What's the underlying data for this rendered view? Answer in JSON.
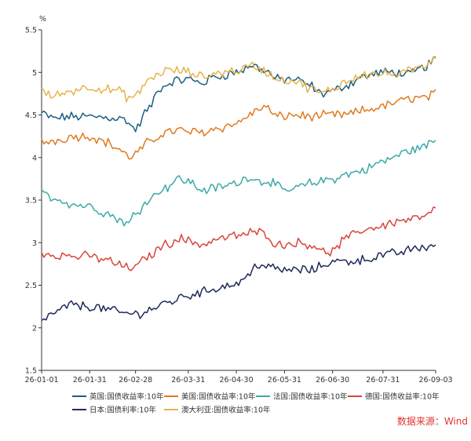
{
  "chart_data": {
    "type": "line",
    "unit_label": "%",
    "source_note": "数据来源：Wind",
    "x_tick_labels": [
      "26-01-01",
      "26-01-31",
      "26-02-28",
      "26-03-31",
      "26-04-30",
      "26-05-31",
      "26-06-30",
      "26-07-31",
      "26-09-03"
    ],
    "x_tick_index": [
      0,
      21,
      41,
      64,
      85,
      106,
      127,
      149,
      172
    ],
    "y_ticks": [
      "1.5",
      "2",
      "2.5",
      "3",
      "3.5",
      "4",
      "4.5",
      "5",
      "5.5"
    ],
    "ylim": [
      1.5,
      5.5
    ],
    "n_points": 173,
    "grid": false,
    "legend_position": "bottom",
    "series": [
      {
        "name": "英国:国债收益率:10年",
        "color": "#1b5e83",
        "anchors": [
          [
            0,
            4.52
          ],
          [
            5,
            4.46
          ],
          [
            12,
            4.48
          ],
          [
            21,
            4.48
          ],
          [
            30,
            4.47
          ],
          [
            36,
            4.45
          ],
          [
            41,
            4.33
          ],
          [
            46,
            4.55
          ],
          [
            52,
            4.82
          ],
          [
            58,
            4.9
          ],
          [
            64,
            4.92
          ],
          [
            70,
            4.88
          ],
          [
            76,
            4.95
          ],
          [
            85,
            5.0
          ],
          [
            92,
            5.08
          ],
          [
            97,
            5.03
          ],
          [
            103,
            4.92
          ],
          [
            110,
            4.92
          ],
          [
            117,
            4.85
          ],
          [
            122,
            4.75
          ],
          [
            127,
            4.78
          ],
          [
            133,
            4.85
          ],
          [
            140,
            4.95
          ],
          [
            149,
            5.0
          ],
          [
            155,
            5.0
          ],
          [
            160,
            4.97
          ],
          [
            166,
            5.05
          ],
          [
            172,
            5.15
          ]
        ]
      },
      {
        "name": "美国:国债收益率:10年",
        "color": "#e07a1f",
        "anchors": [
          [
            0,
            4.18
          ],
          [
            6,
            4.2
          ],
          [
            14,
            4.25
          ],
          [
            21,
            4.25
          ],
          [
            28,
            4.18
          ],
          [
            34,
            4.1
          ],
          [
            38,
            4.0
          ],
          [
            41,
            4.05
          ],
          [
            47,
            4.18
          ],
          [
            54,
            4.3
          ],
          [
            60,
            4.32
          ],
          [
            64,
            4.3
          ],
          [
            70,
            4.3
          ],
          [
            78,
            4.35
          ],
          [
            85,
            4.4
          ],
          [
            92,
            4.52
          ],
          [
            97,
            4.6
          ],
          [
            103,
            4.48
          ],
          [
            110,
            4.5
          ],
          [
            118,
            4.48
          ],
          [
            127,
            4.5
          ],
          [
            133,
            4.5
          ],
          [
            140,
            4.55
          ],
          [
            149,
            4.6
          ],
          [
            155,
            4.65
          ],
          [
            162,
            4.7
          ],
          [
            167,
            4.7
          ],
          [
            172,
            4.75
          ]
        ]
      },
      {
        "name": "法国:国债收益率:10年",
        "color": "#3fa8a8",
        "anchors": [
          [
            0,
            3.58
          ],
          [
            6,
            3.52
          ],
          [
            14,
            3.45
          ],
          [
            21,
            3.43
          ],
          [
            28,
            3.35
          ],
          [
            34,
            3.27
          ],
          [
            38,
            3.22
          ],
          [
            41,
            3.35
          ],
          [
            47,
            3.52
          ],
          [
            54,
            3.65
          ],
          [
            60,
            3.75
          ],
          [
            64,
            3.72
          ],
          [
            70,
            3.62
          ],
          [
            78,
            3.65
          ],
          [
            85,
            3.7
          ],
          [
            91,
            3.78
          ],
          [
            95,
            3.72
          ],
          [
            100,
            3.72
          ],
          [
            106,
            3.6
          ],
          [
            112,
            3.65
          ],
          [
            118,
            3.7
          ],
          [
            127,
            3.75
          ],
          [
            133,
            3.8
          ],
          [
            140,
            3.85
          ],
          [
            149,
            3.95
          ],
          [
            155,
            4.02
          ],
          [
            160,
            4.08
          ],
          [
            166,
            4.12
          ],
          [
            172,
            4.2
          ]
        ]
      },
      {
        "name": "德国:国债收益率:10年",
        "color": "#d9443c",
        "anchors": [
          [
            0,
            2.88
          ],
          [
            6,
            2.86
          ],
          [
            14,
            2.84
          ],
          [
            21,
            2.84
          ],
          [
            28,
            2.8
          ],
          [
            34,
            2.74
          ],
          [
            38,
            2.7
          ],
          [
            41,
            2.72
          ],
          [
            47,
            2.85
          ],
          [
            54,
            2.98
          ],
          [
            60,
            3.05
          ],
          [
            64,
            3.02
          ],
          [
            70,
            2.98
          ],
          [
            78,
            3.05
          ],
          [
            85,
            3.08
          ],
          [
            92,
            3.12
          ],
          [
            97,
            3.12
          ],
          [
            103,
            2.97
          ],
          [
            110,
            3.0
          ],
          [
            118,
            2.98
          ],
          [
            124,
            2.88
          ],
          [
            127,
            2.9
          ],
          [
            133,
            3.05
          ],
          [
            140,
            3.15
          ],
          [
            149,
            3.2
          ],
          [
            155,
            3.25
          ],
          [
            162,
            3.28
          ],
          [
            167,
            3.3
          ],
          [
            172,
            3.38
          ]
        ]
      },
      {
        "name": "日本:国债利率:10年",
        "color": "#1e2a5a",
        "anchors": [
          [
            0,
            2.1
          ],
          [
            6,
            2.17
          ],
          [
            12,
            2.27
          ],
          [
            21,
            2.25
          ],
          [
            28,
            2.22
          ],
          [
            34,
            2.18
          ],
          [
            41,
            2.16
          ],
          [
            48,
            2.22
          ],
          [
            55,
            2.3
          ],
          [
            64,
            2.38
          ],
          [
            70,
            2.42
          ],
          [
            78,
            2.48
          ],
          [
            85,
            2.52
          ],
          [
            90,
            2.6
          ],
          [
            94,
            2.75
          ],
          [
            99,
            2.72
          ],
          [
            103,
            2.68
          ],
          [
            110,
            2.68
          ],
          [
            118,
            2.68
          ],
          [
            125,
            2.76
          ],
          [
            127,
            2.78
          ],
          [
            133,
            2.78
          ],
          [
            140,
            2.8
          ],
          [
            149,
            2.85
          ],
          [
            155,
            2.88
          ],
          [
            162,
            2.92
          ],
          [
            168,
            2.95
          ],
          [
            172,
            2.98
          ]
        ]
      },
      {
        "name": "澳大利亚:国债收益率:10年",
        "color": "#e8b44a",
        "anchors": [
          [
            0,
            4.78
          ],
          [
            5,
            4.72
          ],
          [
            12,
            4.78
          ],
          [
            21,
            4.83
          ],
          [
            28,
            4.8
          ],
          [
            34,
            4.78
          ],
          [
            38,
            4.7
          ],
          [
            41,
            4.72
          ],
          [
            47,
            4.92
          ],
          [
            54,
            5.02
          ],
          [
            60,
            5.02
          ],
          [
            64,
            5.0
          ],
          [
            70,
            4.95
          ],
          [
            78,
            5.0
          ],
          [
            85,
            5.02
          ],
          [
            92,
            5.08
          ],
          [
            97,
            5.02
          ],
          [
            103,
            4.92
          ],
          [
            110,
            4.9
          ],
          [
            117,
            4.82
          ],
          [
            122,
            4.75
          ],
          [
            127,
            4.8
          ],
          [
            133,
            4.9
          ],
          [
            140,
            4.98
          ],
          [
            149,
            4.98
          ],
          [
            155,
            4.98
          ],
          [
            162,
            5.02
          ],
          [
            167,
            5.08
          ],
          [
            172,
            5.2
          ]
        ]
      }
    ]
  }
}
